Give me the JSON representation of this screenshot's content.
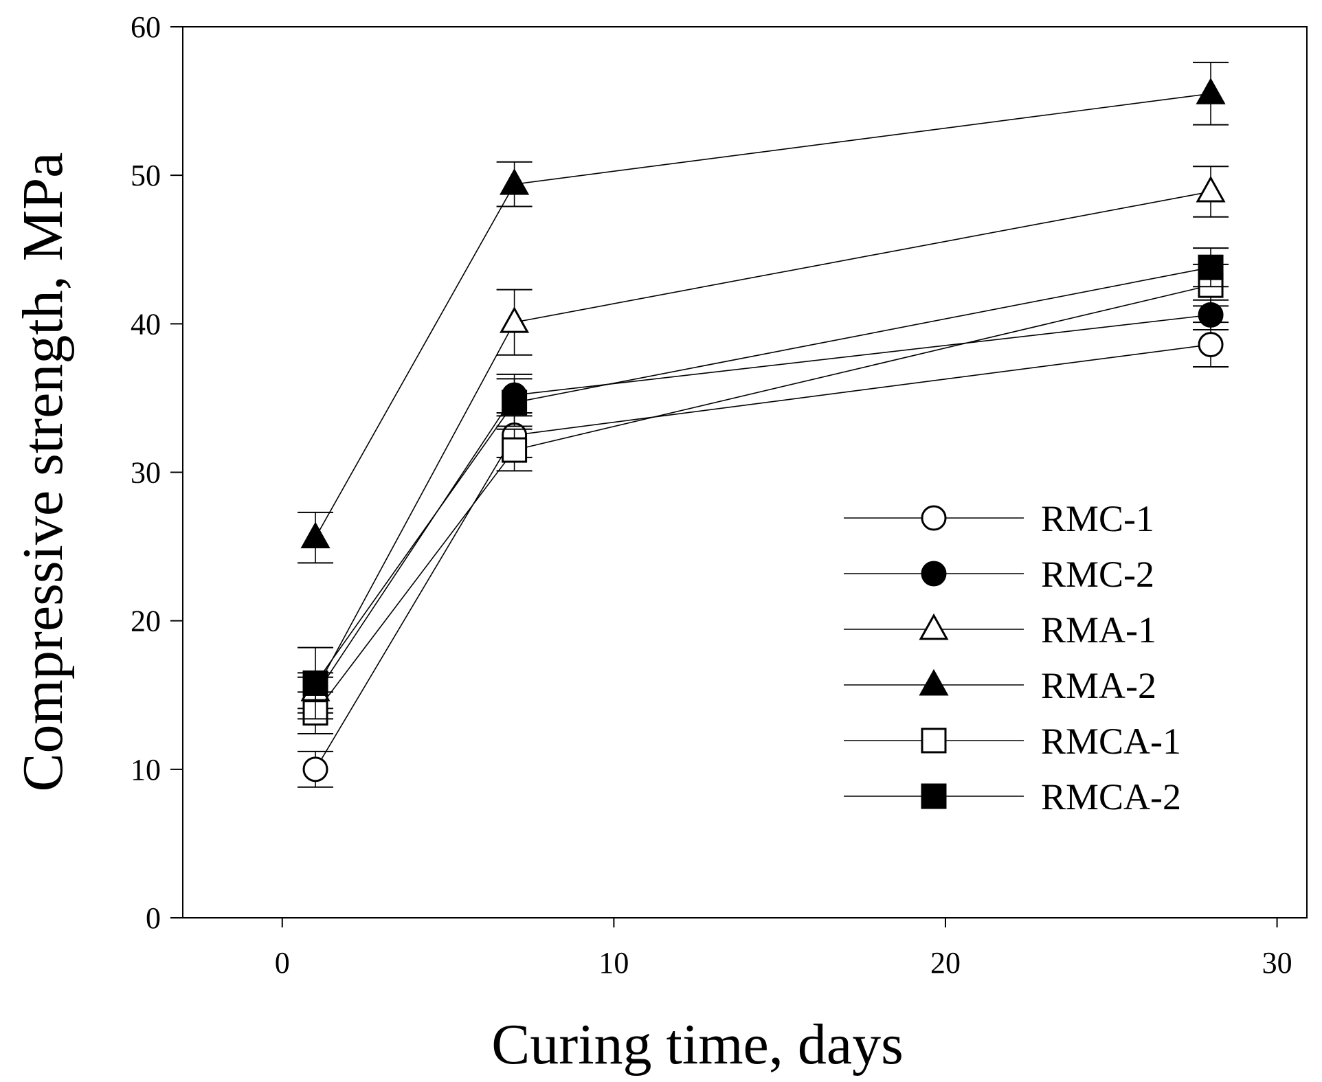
{
  "chart_data": {
    "type": "line",
    "xlabel": "Curing time, days",
    "ylabel": "Compressive strength, MPa",
    "xlim": [
      -3,
      30.9
    ],
    "ylim": [
      0,
      60
    ],
    "xticks": [
      0,
      10,
      20,
      30
    ],
    "yticks": [
      0,
      10,
      20,
      30,
      40,
      50,
      60
    ],
    "grid": false,
    "legend": "center-right",
    "x": [
      1,
      7,
      28
    ],
    "series": [
      {
        "name": "RMC-1",
        "marker": "circle-open",
        "values": [
          10.0,
          32.5,
          38.6
        ],
        "errors": [
          1.2,
          1.5,
          1.5
        ]
      },
      {
        "name": "RMC-2",
        "marker": "circle-filled",
        "values": [
          15.0,
          35.2,
          40.6
        ],
        "errors": [
          1.2,
          1.4,
          1.0
        ]
      },
      {
        "name": "RMA-1",
        "marker": "triangle-open",
        "values": [
          15.3,
          40.1,
          48.9
        ],
        "errors": [
          1.2,
          2.2,
          1.7
        ]
      },
      {
        "name": "RMA-2",
        "marker": "triangle-filled",
        "values": [
          25.6,
          49.4,
          55.5
        ],
        "errors": [
          1.7,
          1.5,
          2.1
        ]
      },
      {
        "name": "RMCA-1",
        "marker": "square-open",
        "values": [
          13.8,
          31.5,
          42.6
        ],
        "errors": [
          1.4,
          1.4,
          1.4
        ]
      },
      {
        "name": "RMCA-2",
        "marker": "square-filled",
        "values": [
          15.8,
          34.7,
          43.8
        ],
        "errors": [
          2.4,
          1.6,
          1.3
        ]
      }
    ]
  }
}
